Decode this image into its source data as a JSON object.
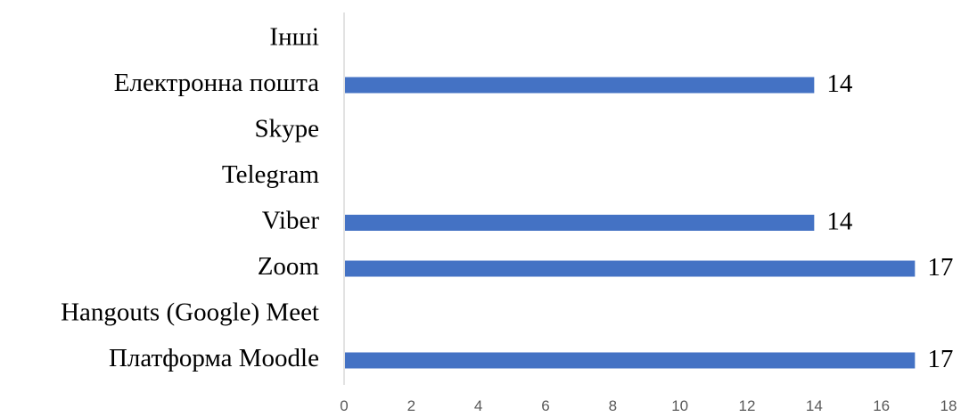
{
  "chart_data": {
    "type": "bar",
    "orientation": "horizontal",
    "categories": [
      "Інші",
      "Електронна пошта",
      "Skype",
      "Telegram",
      "Viber",
      "Zoom",
      "Hangouts (Google) Meet",
      "Платформа Moodle"
    ],
    "values": [
      null,
      14,
      null,
      null,
      14,
      17,
      null,
      17
    ],
    "data_labels": [
      "",
      "14",
      "",
      "",
      "14",
      "17",
      "",
      "17"
    ],
    "xlim": [
      0,
      18
    ],
    "x_ticks": [
      "0",
      "2",
      "4",
      "6",
      "8",
      "10",
      "12",
      "14",
      "16",
      "18"
    ],
    "grid": false,
    "bar_color": "#4472c4"
  }
}
